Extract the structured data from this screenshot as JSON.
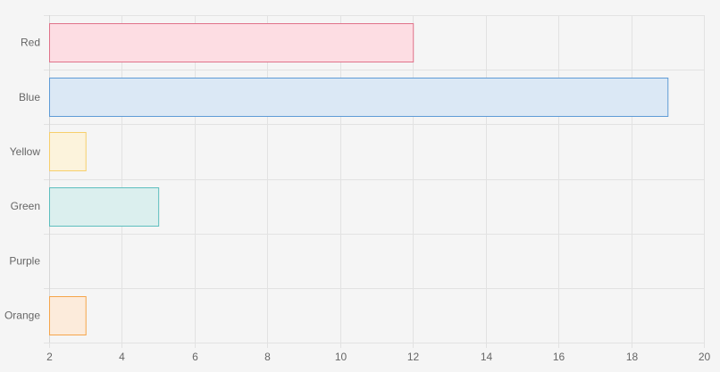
{
  "chart_data": {
    "type": "bar",
    "orientation": "horizontal",
    "categories": [
      "Red",
      "Blue",
      "Yellow",
      "Green",
      "Purple",
      "Orange"
    ],
    "values": [
      12,
      19,
      3,
      5,
      2,
      3
    ],
    "xlim": [
      2,
      20
    ],
    "xticks": [
      "2",
      "4",
      "6",
      "8",
      "10",
      "12",
      "14",
      "16",
      "18",
      "20"
    ],
    "title": "",
    "xlabel": "",
    "ylabel": "",
    "grid": true,
    "legend": "none",
    "colors": {
      "fills": [
        "#fdDDE3",
        "#DBE8F5",
        "#FCF3DC",
        "#DBEFEE",
        "#EAE2F8",
        "#FCEBDB"
      ],
      "borders": [
        "#E0728A",
        "#5E9BD6",
        "#F7CF6B",
        "#5DBEBE",
        "#9966FF",
        "#F5A54A"
      ]
    }
  }
}
